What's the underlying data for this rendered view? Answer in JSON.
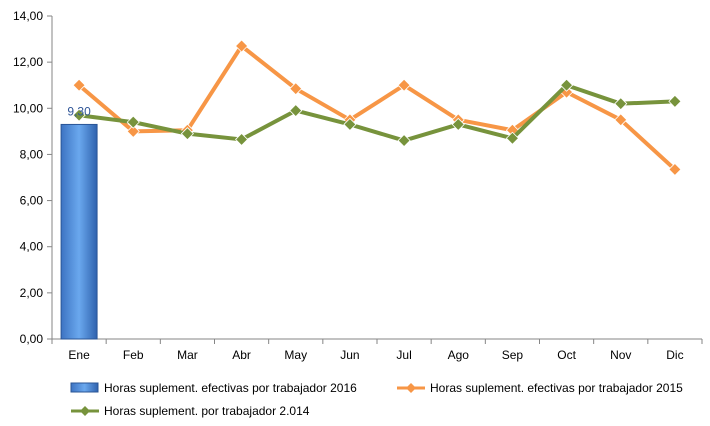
{
  "chart_data": {
    "type": "bar+line",
    "title": "",
    "xlabel": "",
    "ylabel": "",
    "categories": [
      "Ene",
      "Feb",
      "Mar",
      "Abr",
      "May",
      "Jun",
      "Jul",
      "Ago",
      "Sep",
      "Oct",
      "Nov",
      "Dic"
    ],
    "ylim": [
      0,
      14
    ],
    "yticks": [
      "0,00",
      "2,00",
      "4,00",
      "6,00",
      "8,00",
      "10,00",
      "12,00",
      "14,00"
    ],
    "grid": false,
    "legend_position": "bottom",
    "series": [
      {
        "name": "Horas suplement. efectivas por trabajador 2016",
        "kind": "bar",
        "color": "#4a86d4",
        "values": [
          9.3,
          null,
          null,
          null,
          null,
          null,
          null,
          null,
          null,
          null,
          null,
          null
        ],
        "data_labels": [
          "9,30"
        ]
      },
      {
        "name": "Horas suplement. efectivas por trabajador 2015",
        "kind": "line",
        "color": "#f79646",
        "values": [
          11.0,
          9.0,
          9.05,
          12.7,
          10.85,
          9.5,
          11.0,
          9.5,
          9.05,
          10.7,
          9.5,
          7.35
        ]
      },
      {
        "name": "Horas suplement. por trabajador 2.014",
        "kind": "line",
        "color": "#77933c",
        "values": [
          9.7,
          9.4,
          8.9,
          8.65,
          9.9,
          9.3,
          8.6,
          9.3,
          8.7,
          11.0,
          10.2,
          10.3
        ]
      }
    ]
  }
}
